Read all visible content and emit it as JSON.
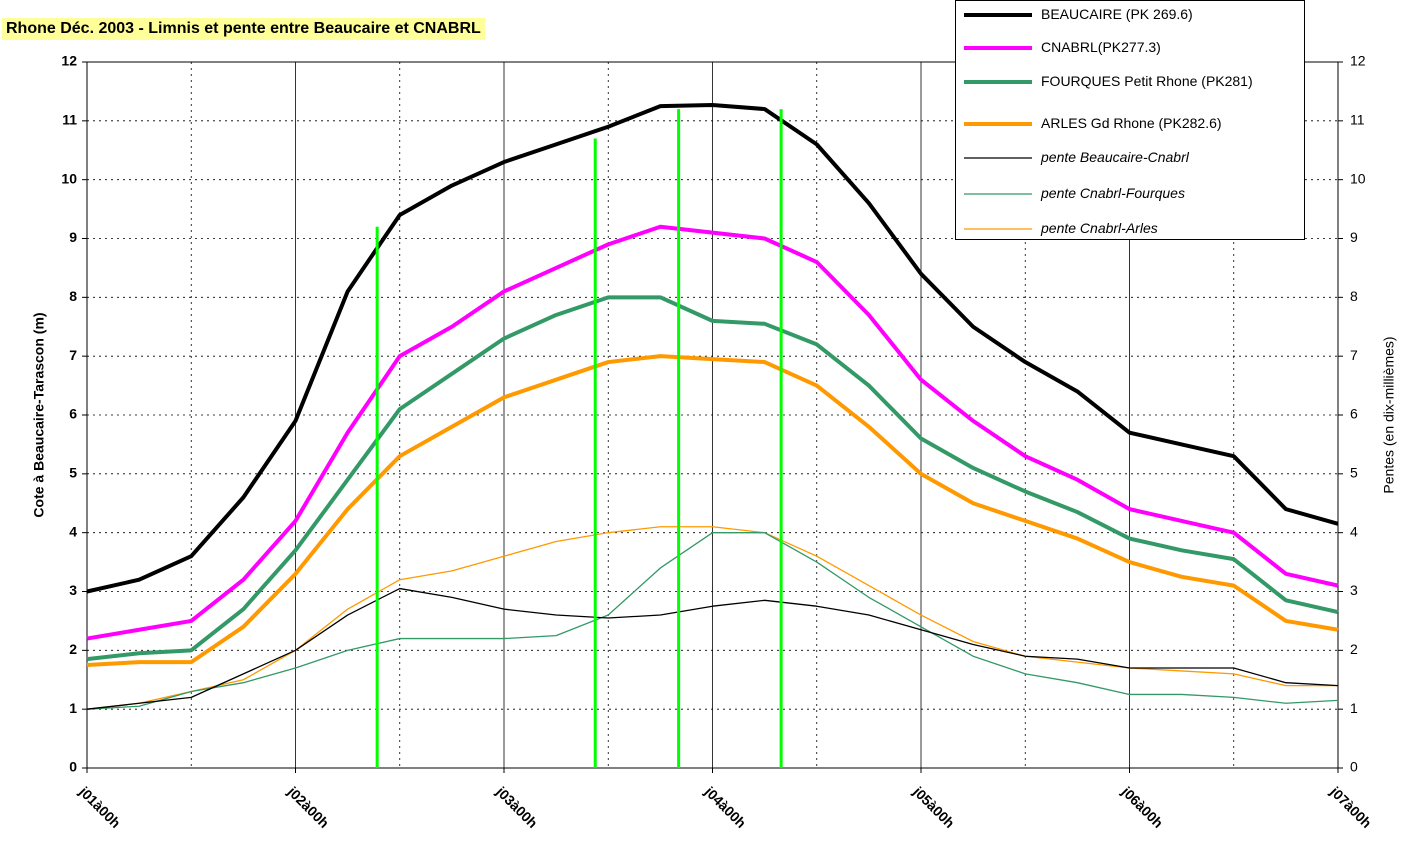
{
  "chart_data": {
    "type": "line",
    "title": "Rhone Déc. 2003 - Limnis et pente entre Beaucaire et CNABRL",
    "y_label": "Cote à Beaucaire-Tarascon (m)",
    "y2_label": "Pentes (en dix-millièmes)",
    "xlim": [
      0,
      144
    ],
    "xticks": [
      {
        "value": 0,
        "label": "j01à00h"
      },
      {
        "value": 24,
        "label": "j02à00h"
      },
      {
        "value": 48,
        "label": "j03à00h"
      },
      {
        "value": 72,
        "label": "j04à00h"
      },
      {
        "value": 96,
        "label": "j05à00h"
      },
      {
        "value": 120,
        "label": "j06à00h"
      },
      {
        "value": 144,
        "label": "j07à00h"
      }
    ],
    "ylim": [
      0,
      12
    ],
    "yticks": [
      0,
      1,
      2,
      3,
      4,
      5,
      6,
      7,
      8,
      9,
      10,
      11,
      12
    ],
    "y2lim": [
      0,
      12
    ],
    "y2ticks": [
      0,
      1,
      2,
      3,
      4,
      5,
      6,
      7,
      8,
      9,
      10,
      11,
      12
    ],
    "grid": true,
    "x": [
      0,
      6,
      12,
      18,
      24,
      30,
      36,
      42,
      48,
      54,
      60,
      66,
      72,
      78,
      84,
      90,
      96,
      102,
      108,
      114,
      120,
      126,
      132,
      138,
      144
    ],
    "series": [
      {
        "name": "BEAUCAIRE (PK 269.6)",
        "color": "#000000",
        "width": 4,
        "values": [
          3.0,
          3.2,
          3.6,
          4.6,
          5.9,
          8.1,
          9.4,
          9.9,
          10.3,
          10.6,
          10.9,
          11.25,
          11.27,
          11.2,
          10.6,
          9.6,
          8.4,
          7.5,
          6.9,
          6.4,
          5.7,
          5.5,
          5.3,
          4.4,
          4.15
        ]
      },
      {
        "name": "CNABRL(PK277.3)",
        "color": "#ff00ff",
        "width": 4,
        "values": [
          2.2,
          2.35,
          2.5,
          3.2,
          4.2,
          5.7,
          7.0,
          7.5,
          8.1,
          8.5,
          8.9,
          9.2,
          9.1,
          9.0,
          8.6,
          7.7,
          6.6,
          5.9,
          5.3,
          4.9,
          4.4,
          4.2,
          4.0,
          3.3,
          3.1
        ]
      },
      {
        "name": "FOURQUES Petit Rhone (PK281)",
        "color": "#339966",
        "width": 4,
        "values": [
          1.85,
          1.95,
          2.0,
          2.7,
          3.7,
          4.9,
          6.1,
          6.7,
          7.3,
          7.7,
          8.0,
          8.0,
          7.6,
          7.55,
          7.2,
          6.5,
          5.6,
          5.1,
          4.7,
          4.35,
          3.9,
          3.7,
          3.55,
          2.85,
          2.65
        ]
      },
      {
        "name": "ARLES Gd Rhone (PK282.6)",
        "color": "#ff9900",
        "width": 4,
        "values": [
          1.75,
          1.8,
          1.8,
          2.4,
          3.3,
          4.4,
          5.3,
          5.8,
          6.3,
          6.6,
          6.9,
          7.0,
          6.95,
          6.9,
          6.5,
          5.8,
          5.0,
          4.5,
          4.2,
          3.9,
          3.5,
          3.25,
          3.1,
          2.5,
          2.35
        ]
      },
      {
        "name": "pente Beaucaire-Cnabrl",
        "color": "#000000",
        "width": 1.3,
        "axis": "y2",
        "values": [
          1.0,
          1.1,
          1.2,
          1.6,
          2.0,
          2.6,
          3.05,
          2.9,
          2.7,
          2.6,
          2.55,
          2.6,
          2.75,
          2.85,
          2.75,
          2.6,
          2.35,
          2.1,
          1.9,
          1.85,
          1.7,
          1.7,
          1.7,
          1.45,
          1.4
        ]
      },
      {
        "name": "pente Cnabrl-Fourques",
        "color": "#339966",
        "width": 1.3,
        "axis": "y2",
        "values": [
          1.0,
          1.05,
          1.3,
          1.45,
          1.7,
          2.0,
          2.2,
          2.2,
          2.2,
          2.25,
          2.6,
          3.4,
          4.0,
          4.0,
          3.5,
          2.9,
          2.4,
          1.9,
          1.6,
          1.45,
          1.25,
          1.25,
          1.2,
          1.1,
          1.15
        ]
      },
      {
        "name": "pente Cnabrl-Arles",
        "color": "#ff9900",
        "width": 1.3,
        "axis": "y2",
        "values": [
          1.0,
          1.1,
          1.3,
          1.5,
          2.0,
          2.7,
          3.2,
          3.35,
          3.6,
          3.85,
          4.0,
          4.1,
          4.1,
          4.0,
          3.6,
          3.1,
          2.6,
          2.15,
          1.9,
          1.8,
          1.7,
          1.65,
          1.6,
          1.4,
          1.4
        ]
      }
    ],
    "vlines_color": "#00ff00",
    "vlines": [
      {
        "x": 33.4,
        "y": 9.2
      },
      {
        "x": 58.5,
        "y": 10.7
      },
      {
        "x": 68.1,
        "y": 11.2
      },
      {
        "x": 79.9,
        "y": 11.2
      }
    ]
  }
}
